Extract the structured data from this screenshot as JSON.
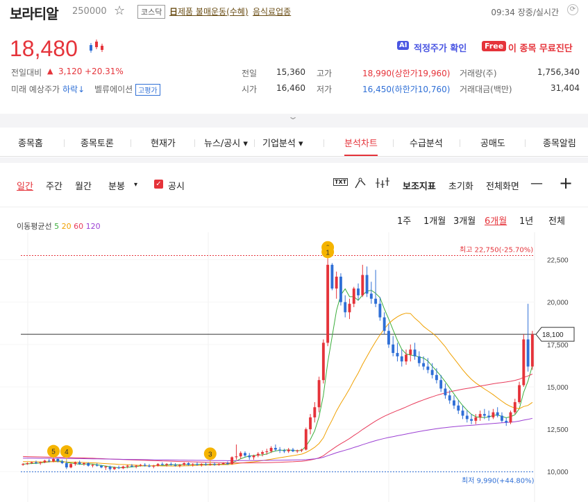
{
  "header": {
    "name": "보라티알",
    "code": "250000",
    "market": "코스닥",
    "theme_prefix": "日",
    "theme": "제품 불매운동(수혜)",
    "sector": "음식료업종",
    "time_status": "09:34 장중/실시간"
  },
  "quote": {
    "price": "18,480",
    "change_label": "전일대비",
    "change_arrow": "▲",
    "change_value": "3,120",
    "change_pct": "+20.31%",
    "forecast_label": "미래 예상주가",
    "forecast_value": "하락↓",
    "valuation_label": "벨류에이션",
    "valuation_badge": "고평가",
    "ai_badge": "AI",
    "ai_text": "적정주가 확인",
    "free_badge": "Free",
    "free_text": "이 종목 무료진단"
  },
  "stats": {
    "prev_label": "전일",
    "prev": "15,360",
    "open_label": "시가",
    "open": "16,460",
    "high_label": "고가",
    "high": "18,990(상한가19,960)",
    "low_label": "저가",
    "low": "16,450(하한가10,760)",
    "volume_label": "거래량(주)",
    "volume": "1,756,340",
    "amount_label": "거래대금(백만)",
    "amount": "31,404"
  },
  "nav": {
    "items": [
      "종목홈",
      "종목토론",
      "현재가",
      "뉴스/공시 ▾",
      "기업분석 ▾",
      "분석차트",
      "수급분석",
      "공매도",
      "종목알림"
    ],
    "active_index": 5
  },
  "toolbar": {
    "daily": "일간",
    "weekly": "주간",
    "monthly": "월간",
    "minute": "분봉",
    "minute_arrow": "▾",
    "disclosure": "공시",
    "txt_icon": "TXT",
    "aux": "보조지표",
    "reset": "초기화",
    "fullscreen": "전체화면",
    "minus": "—",
    "plus": "+"
  },
  "ma": {
    "label": "이동평균선",
    "p5": "5",
    "p20": "20",
    "p60": "60",
    "p120": "120"
  },
  "periods": [
    "1주",
    "1개월",
    "3개월",
    "6개월",
    "1년",
    "전체"
  ],
  "periods_active": 3,
  "colors": {
    "up": "#e5333a",
    "down": "#2f6fd6",
    "ma5": "#3cae3c",
    "ma20": "#f0a000",
    "ma60": "#e83a5a",
    "ma120": "#9b3fd3"
  },
  "chart_data": {
    "type": "candlestick",
    "ylim": [
      9600,
      23300
    ],
    "yticks": [
      "22,500",
      "20,000",
      "17,500",
      "15,000",
      "12,500",
      "10,000"
    ],
    "high_label": "최고 22,750(-25.70%)",
    "low_label": "최저 9,990(+44.80%)",
    "current_label": "18,100",
    "high_value": 22750,
    "low_value": 9990,
    "current_value": 18100,
    "markers": [
      {
        "label": "5",
        "index": 7,
        "value": 10800
      },
      {
        "label": "4",
        "index": 10,
        "value": 10780
      },
      {
        "label": "3",
        "index": 43,
        "value": 10650
      },
      {
        "label": "2",
        "index": 70,
        "value": 22820
      },
      {
        "label": "1",
        "index": 70,
        "value": 22550
      }
    ],
    "candles": [
      [
        10400,
        10500,
        10350,
        10450
      ],
      [
        10450,
        10550,
        10400,
        10500
      ],
      [
        10500,
        10600,
        10450,
        10550
      ],
      [
        10550,
        10650,
        10450,
        10500
      ],
      [
        10500,
        10600,
        10400,
        10550
      ],
      [
        10550,
        10700,
        10500,
        10650
      ],
      [
        10650,
        10750,
        10550,
        10600
      ],
      [
        10600,
        10900,
        10550,
        10750
      ],
      [
        10750,
        10800,
        10550,
        10600
      ],
      [
        10600,
        10700,
        10450,
        10500
      ],
      [
        10500,
        10650,
        10150,
        10250
      ],
      [
        10250,
        10500,
        10200,
        10450
      ],
      [
        10450,
        10600,
        10350,
        10550
      ],
      [
        10550,
        10650,
        10400,
        10450
      ],
      [
        10450,
        10550,
        10350,
        10500
      ],
      [
        10500,
        10550,
        10300,
        10350
      ],
      [
        10350,
        10450,
        10250,
        10400
      ],
      [
        10400,
        10500,
        10300,
        10350
      ],
      [
        10350,
        10400,
        10200,
        10250
      ],
      [
        10250,
        10350,
        10100,
        10300
      ],
      [
        10300,
        10350,
        10050,
        10150
      ],
      [
        10150,
        10300,
        10100,
        10250
      ],
      [
        10250,
        10350,
        10150,
        10200
      ],
      [
        10200,
        10350,
        10150,
        10300
      ],
      [
        10300,
        10400,
        10200,
        10350
      ],
      [
        10350,
        10450,
        10250,
        10300
      ],
      [
        10300,
        10400,
        10200,
        10350
      ],
      [
        10350,
        10450,
        10300,
        10400
      ],
      [
        10400,
        10500,
        10300,
        10350
      ],
      [
        10350,
        10450,
        10250,
        10300
      ],
      [
        10300,
        10400,
        10200,
        10350
      ],
      [
        10350,
        10500,
        10300,
        10450
      ],
      [
        10450,
        10550,
        10350,
        10400
      ],
      [
        10400,
        10500,
        10300,
        10450
      ],
      [
        10450,
        10550,
        10350,
        10400
      ],
      [
        10400,
        10500,
        10300,
        10350
      ],
      [
        10350,
        10450,
        10250,
        10400
      ],
      [
        10400,
        10550,
        10350,
        10500
      ],
      [
        10500,
        10550,
        10350,
        10400
      ],
      [
        10400,
        10500,
        10300,
        10450
      ],
      [
        10450,
        10550,
        10350,
        10400
      ],
      [
        10400,
        10500,
        10300,
        10450
      ],
      [
        10450,
        10550,
        10350,
        10400
      ],
      [
        10400,
        10500,
        10350,
        10450
      ],
      [
        10450,
        10550,
        10350,
        10400
      ],
      [
        10400,
        10500,
        10350,
        10450
      ],
      [
        10450,
        10550,
        10400,
        10500
      ],
      [
        10500,
        10600,
        10400,
        10450
      ],
      [
        10450,
        10900,
        10400,
        10850
      ],
      [
        10850,
        11600,
        10700,
        10900
      ],
      [
        10900,
        11200,
        10750,
        11100
      ],
      [
        11100,
        11200,
        10850,
        10950
      ],
      [
        10950,
        11100,
        10700,
        10850
      ],
      [
        10850,
        11000,
        10700,
        10950
      ],
      [
        10950,
        11150,
        10850,
        11050
      ],
      [
        11050,
        11250,
        10900,
        11150
      ],
      [
        11150,
        11350,
        11000,
        11200
      ],
      [
        11200,
        11500,
        11100,
        11400
      ],
      [
        11400,
        11600,
        11200,
        11300
      ],
      [
        11300,
        11450,
        11100,
        11250
      ],
      [
        11250,
        11350,
        11100,
        11200
      ],
      [
        11200,
        11400,
        11100,
        11300
      ],
      [
        11300,
        11400,
        11150,
        11200
      ],
      [
        11200,
        11300,
        11100,
        11250
      ],
      [
        11250,
        11350,
        11150,
        11300
      ],
      [
        11300,
        12600,
        11250,
        12500
      ],
      [
        12500,
        13400,
        12200,
        13200
      ],
      [
        13200,
        14100,
        12900,
        13800
      ],
      [
        13800,
        15600,
        13500,
        15400
      ],
      [
        15400,
        17800,
        15200,
        17600
      ],
      [
        17600,
        22800,
        17400,
        22200
      ],
      [
        22200,
        22300,
        20700,
        20800
      ],
      [
        20800,
        21800,
        20200,
        21500
      ],
      [
        21500,
        21700,
        19800,
        20000
      ],
      [
        20000,
        20400,
        19100,
        19400
      ],
      [
        19400,
        20200,
        19000,
        19900
      ],
      [
        19900,
        20900,
        19700,
        20800
      ],
      [
        20800,
        21100,
        20100,
        20400
      ],
      [
        20400,
        22200,
        20300,
        21600
      ],
      [
        21600,
        22100,
        20300,
        20500
      ],
      [
        20500,
        21200,
        19900,
        20200
      ],
      [
        20200,
        21900,
        19700,
        19900
      ],
      [
        19900,
        20300,
        18900,
        19100
      ],
      [
        19100,
        19400,
        18100,
        18300
      ],
      [
        18300,
        18700,
        17300,
        17500
      ],
      [
        17500,
        18000,
        16800,
        17000
      ],
      [
        17000,
        17600,
        16500,
        16800
      ],
      [
        16800,
        17200,
        16200,
        16500
      ],
      [
        16500,
        17200,
        16300,
        16900
      ],
      [
        16900,
        17500,
        16500,
        17200
      ],
      [
        17200,
        17600,
        16600,
        16800
      ],
      [
        16800,
        17100,
        16200,
        16400
      ],
      [
        16400,
        16800,
        16000,
        16200
      ],
      [
        16200,
        16700,
        15800,
        16000
      ],
      [
        16000,
        16400,
        15500,
        15700
      ],
      [
        15700,
        16100,
        15200,
        15400
      ],
      [
        15400,
        15700,
        14700,
        14900
      ],
      [
        14900,
        15200,
        14300,
        14500
      ],
      [
        14500,
        14800,
        14000,
        14200
      ],
      [
        14200,
        14500,
        13700,
        13900
      ],
      [
        13900,
        14200,
        13400,
        13600
      ],
      [
        13600,
        13900,
        13100,
        13300
      ],
      [
        13300,
        13600,
        12900,
        13100
      ],
      [
        13100,
        13400,
        12800,
        13000
      ],
      [
        13000,
        13400,
        12800,
        13200
      ],
      [
        13200,
        13600,
        13000,
        13400
      ],
      [
        13400,
        13700,
        13100,
        13300
      ],
      [
        13300,
        13600,
        13000,
        13200
      ],
      [
        13200,
        13700,
        13100,
        13500
      ],
      [
        13500,
        13800,
        13200,
        13300
      ],
      [
        13300,
        13500,
        12900,
        13000
      ],
      [
        13000,
        13200,
        12700,
        12900
      ],
      [
        12900,
        13600,
        12800,
        13500
      ],
      [
        13500,
        14300,
        13400,
        14100
      ],
      [
        14100,
        15300,
        14000,
        15100
      ],
      [
        15100,
        18100,
        15000,
        17800
      ],
      [
        17800,
        19900,
        15900,
        16200
      ],
      [
        16200,
        18300,
        16000,
        18100
      ]
    ]
  }
}
